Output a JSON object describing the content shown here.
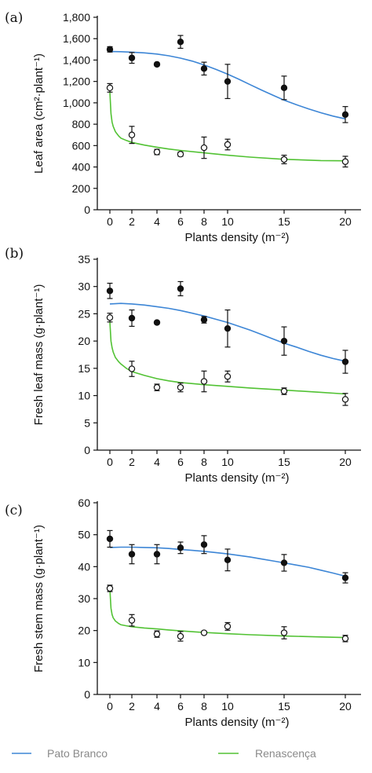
{
  "legend": [
    {
      "name": "Pato Branco",
      "color": "#3d86d6"
    },
    {
      "name": "Renascença",
      "color": "#52c234"
    }
  ],
  "chart_data": [
    {
      "type": "scatter",
      "panel": "(a)",
      "xlabel": "Plants density (m⁻²)",
      "ylabel": "Leaf area (cm²·plant⁻¹)",
      "xlim": [
        -0.5,
        21
      ],
      "xticks": [
        0,
        2,
        4,
        6,
        8,
        10,
        15,
        20
      ],
      "ylim": [
        0,
        1800
      ],
      "yticks": [
        0,
        200,
        400,
        600,
        800,
        1000,
        1200,
        1400,
        1600,
        1800
      ],
      "ytick_labels": [
        "0",
        "200",
        "400",
        "600",
        "800",
        "1,000",
        "1,200",
        "1,400",
        "1,600",
        "1,800"
      ],
      "series": [
        {
          "name": "Pato Branco",
          "marker": "filled",
          "color": "#3d86d6",
          "x": [
            0,
            2,
            4,
            6,
            8,
            10,
            15,
            20
          ],
          "y": [
            1500,
            1420,
            1360,
            1570,
            1320,
            1200,
            1140,
            890
          ],
          "err": [
            25,
            50,
            15,
            60,
            60,
            160,
            110,
            75
          ],
          "fit_x": [
            0,
            1,
            2,
            3,
            4,
            5,
            6,
            7,
            8,
            9,
            10,
            11,
            12,
            13,
            14,
            15,
            16,
            17,
            18,
            19,
            20
          ],
          "fit_y": [
            1480,
            1478,
            1474,
            1467,
            1456,
            1440,
            1418,
            1390,
            1355,
            1313,
            1268,
            1220,
            1170,
            1120,
            1072,
            1025,
            982,
            943,
            907,
            876,
            850
          ]
        },
        {
          "name": "Renascença",
          "marker": "open",
          "color": "#52c234",
          "x": [
            0,
            2,
            4,
            6,
            8,
            10,
            15,
            20
          ],
          "y": [
            1140,
            700,
            540,
            520,
            580,
            610,
            470,
            450
          ],
          "err": [
            40,
            80,
            25,
            20,
            100,
            50,
            40,
            50
          ],
          "fit_x": [
            0,
            0.1,
            0.2,
            0.3,
            0.5,
            0.8,
            1,
            1.5,
            2,
            3,
            4,
            5,
            6,
            8,
            10,
            12,
            15,
            18,
            20
          ],
          "fit_y": [
            1100,
            900,
            820,
            780,
            730,
            690,
            670,
            648,
            630,
            605,
            585,
            568,
            555,
            532,
            510,
            492,
            472,
            460,
            458
          ]
        }
      ]
    },
    {
      "type": "scatter",
      "panel": "(b)",
      "xlabel": "Plants density (m⁻²)",
      "ylabel": "Fresh leaf mass (g·plant⁻¹)",
      "xlim": [
        -0.5,
        21
      ],
      "xticks": [
        0,
        2,
        4,
        6,
        8,
        10,
        15,
        20
      ],
      "ylim": [
        0,
        35
      ],
      "yticks": [
        0,
        5,
        10,
        15,
        20,
        25,
        30,
        35
      ],
      "ytick_labels": [
        "0",
        "5",
        "10",
        "15",
        "20",
        "25",
        "30",
        "35"
      ],
      "series": [
        {
          "name": "Pato Branco",
          "marker": "filled",
          "color": "#3d86d6",
          "x": [
            0,
            2,
            4,
            6,
            8,
            10,
            15,
            20
          ],
          "y": [
            29.2,
            24.2,
            23.4,
            29.6,
            23.9,
            22.3,
            20.0,
            16.2
          ],
          "err": [
            1.4,
            1.5,
            0.3,
            1.3,
            0.6,
            3.4,
            2.6,
            2.1
          ],
          "fit_x": [
            0,
            1,
            2,
            3,
            4,
            5,
            6,
            7,
            8,
            9,
            10,
            11,
            12,
            13,
            14,
            15,
            16,
            17,
            18,
            19,
            20
          ],
          "fit_y": [
            26.8,
            26.9,
            26.8,
            26.6,
            26.3,
            26.0,
            25.6,
            25.1,
            24.6,
            24.0,
            23.4,
            22.7,
            22.0,
            21.2,
            20.4,
            19.6,
            18.9,
            18.1,
            17.4,
            16.8,
            16.3
          ]
        },
        {
          "name": "Renascença",
          "marker": "open",
          "color": "#52c234",
          "x": [
            0,
            2,
            4,
            6,
            8,
            10,
            15,
            20
          ],
          "y": [
            24.3,
            14.9,
            11.5,
            11.5,
            12.6,
            13.5,
            10.8,
            9.3
          ],
          "err": [
            0.8,
            1.4,
            0.6,
            0.8,
            1.9,
            1.0,
            0.6,
            1.1
          ],
          "fit_x": [
            0,
            0.1,
            0.2,
            0.3,
            0.5,
            0.8,
            1,
            1.5,
            2,
            3,
            4,
            5,
            6,
            8,
            10,
            12,
            15,
            18,
            20
          ],
          "fit_y": [
            23.5,
            20.0,
            18.8,
            18.0,
            17.0,
            16.2,
            15.8,
            15.0,
            14.4,
            13.7,
            13.1,
            12.7,
            12.4,
            12.0,
            11.7,
            11.4,
            11.0,
            10.6,
            10.3
          ]
        }
      ]
    },
    {
      "type": "scatter",
      "panel": "(c)",
      "xlabel": "Plants density (m⁻²)",
      "ylabel": "Fresh stem mass (g·plant⁻¹)",
      "xlim": [
        -0.5,
        21
      ],
      "xticks": [
        0,
        2,
        4,
        6,
        8,
        10,
        15,
        20
      ],
      "ylim": [
        0,
        60
      ],
      "yticks": [
        0,
        10,
        20,
        30,
        40,
        50,
        60
      ],
      "ytick_labels": [
        "0",
        "10",
        "20",
        "30",
        "40",
        "50",
        "60"
      ],
      "series": [
        {
          "name": "Pato Branco",
          "marker": "filled",
          "color": "#3d86d6",
          "x": [
            0,
            2,
            4,
            6,
            8,
            10,
            15,
            20
          ],
          "y": [
            48.7,
            43.9,
            43.9,
            45.9,
            46.9,
            42.1,
            41.2,
            36.5
          ],
          "err": [
            2.6,
            3.0,
            3.0,
            1.8,
            2.8,
            3.4,
            2.6,
            1.6
          ],
          "fit_x": [
            0,
            1,
            2,
            3,
            4,
            5,
            6,
            7,
            8,
            9,
            10,
            11,
            12,
            13,
            14,
            15,
            16,
            17,
            18,
            19,
            20
          ],
          "fit_y": [
            46.0,
            46.1,
            46.1,
            46.0,
            45.9,
            45.7,
            45.4,
            45.1,
            44.8,
            44.4,
            44.0,
            43.5,
            43.0,
            42.4,
            41.8,
            41.2,
            40.5,
            39.8,
            38.9,
            38.0,
            37.0
          ]
        },
        {
          "name": "Renascença",
          "marker": "open",
          "color": "#52c234",
          "x": [
            0,
            2,
            4,
            6,
            8,
            10,
            15,
            20
          ],
          "y": [
            33.2,
            23.2,
            18.9,
            18.2,
            19.3,
            21.3,
            19.3,
            17.5
          ],
          "err": [
            1.0,
            1.8,
            1.0,
            1.5,
            0.5,
            1.2,
            1.9,
            1.0
          ],
          "fit_x": [
            0,
            0.1,
            0.2,
            0.3,
            0.5,
            0.8,
            1,
            1.5,
            2,
            3,
            4,
            5,
            6,
            8,
            10,
            12,
            15,
            18,
            20
          ],
          "fit_y": [
            33.0,
            27.0,
            25.0,
            24.0,
            23.0,
            22.2,
            21.8,
            21.5,
            21.2,
            20.8,
            20.5,
            20.2,
            19.9,
            19.4,
            19.0,
            18.7,
            18.3,
            18.0,
            17.8
          ]
        }
      ]
    }
  ]
}
